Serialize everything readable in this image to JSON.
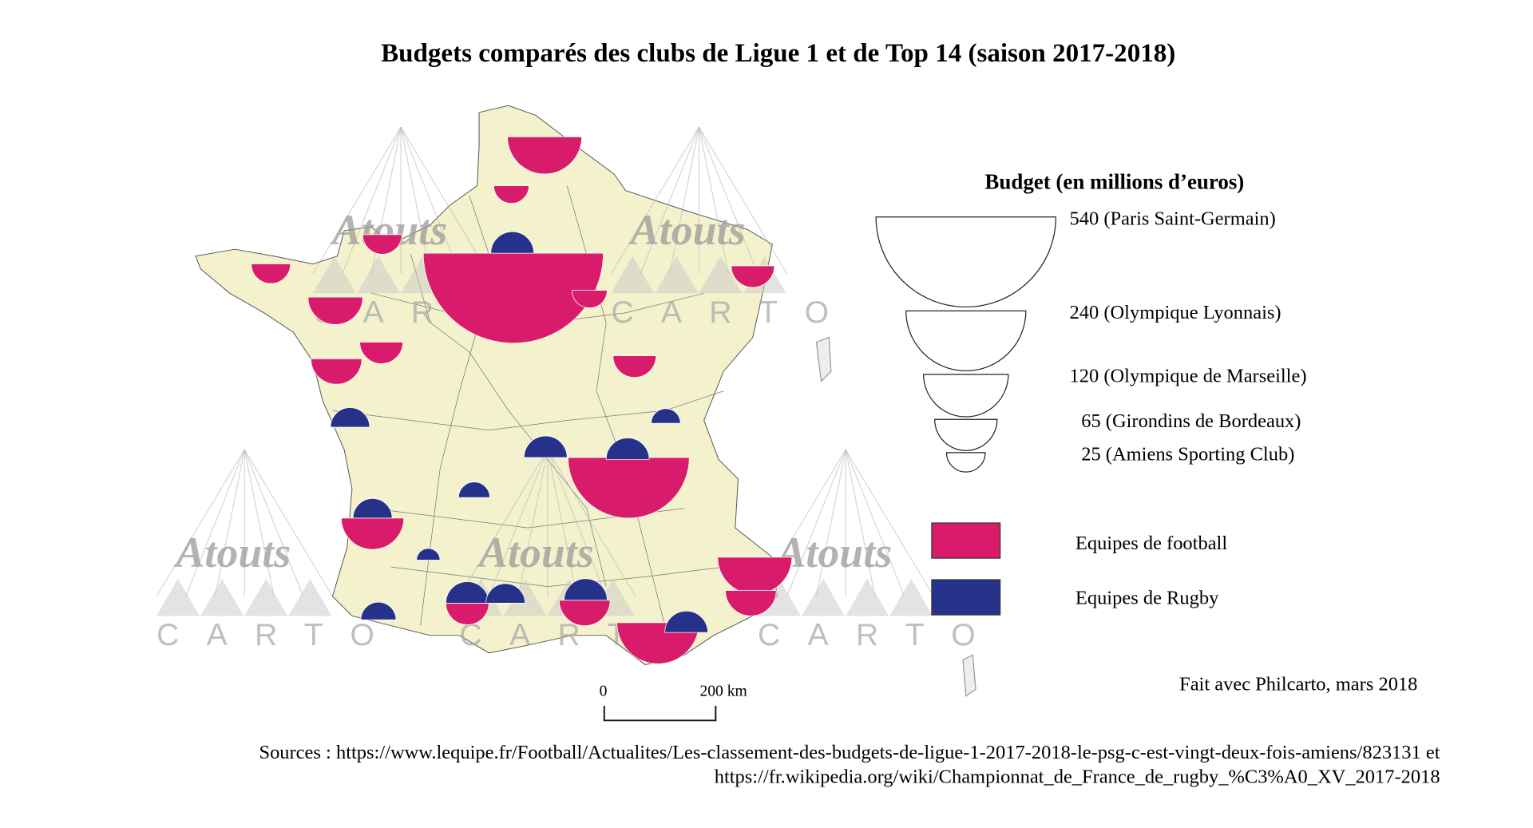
{
  "title": "Budgets comparés des clubs de Ligue 1 et de Top 14 (saison 2017-2018)",
  "colors": {
    "football": "#d81b6a",
    "rugby": "#26318a",
    "land": "#f4f2cc"
  },
  "chart_data": {
    "type": "proportional-symbol-map",
    "legend_title": "Budget (en millions d’euros)",
    "size_legend": [
      {
        "value": 540,
        "label": "540 (Paris Saint-Germain)"
      },
      {
        "value": 240,
        "label": "240 (Olympique Lyonnais)"
      },
      {
        "value": 120,
        "label": "120 (Olympique de Marseille)"
      },
      {
        "value": 65,
        "label": "65 (Girondins de Bordeaux)"
      },
      {
        "value": 25,
        "label": "25 (Amiens Sporting Club)"
      }
    ],
    "color_legend": [
      {
        "key": "football",
        "label": "Equipes de football"
      },
      {
        "key": "rugby",
        "label": "Equipes de Rugby"
      }
    ]
  },
  "scale": {
    "zero": "0",
    "end": "200 km"
  },
  "watermark": {
    "word1": "Atouts",
    "word2": "CARTO"
  },
  "credit": "Fait avec Philcarto, mars 2018",
  "sources": {
    "line1": "Sources : https://www.lequipe.fr/Football/Actualites/Les-classement-des-budgets-de-ligue-1-2017-2018-le-psg-c-est-vingt-deux-fois-amiens/823131 et",
    "line2": "https://fr.wikipedia.org/wiki/Championnat_de_France_de_rugby_%C3%A0_XV_2017-2018"
  }
}
